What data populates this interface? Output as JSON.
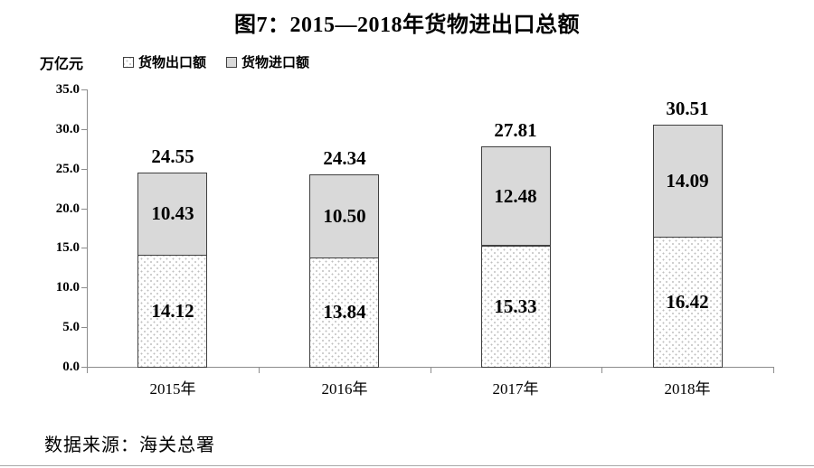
{
  "figure": {
    "title": "图7：2015—2018年货物进出口总额",
    "y_unit": "万亿元",
    "source": "数据来源：海关总署"
  },
  "chart_data": {
    "type": "bar",
    "stacked": true,
    "title": "图7：2015—2018年货物进出口总额",
    "ylabel": "万亿元",
    "xlabel": "",
    "ylim": [
      0,
      35
    ],
    "ytick_step": 5,
    "ytick_labels": [
      "0.0",
      "5.0",
      "10.0",
      "15.0",
      "20.0",
      "25.0",
      "30.0",
      "35.0"
    ],
    "grid": false,
    "legend_position": "top-left",
    "categories": [
      "2015年",
      "2016年",
      "2017年",
      "2018年"
    ],
    "series": [
      {
        "name": "货物出口额",
        "values": [
          14.12,
          13.84,
          15.33,
          16.42
        ],
        "fill": "white-dotted"
      },
      {
        "name": "货物进口额",
        "values": [
          10.43,
          10.5,
          12.48,
          14.09
        ],
        "fill": "#d9d9d9"
      }
    ],
    "totals": [
      24.55,
      24.34,
      27.81,
      30.51
    ],
    "source": "数据来源：海关总署"
  },
  "colors": {
    "bar_border": "#404040",
    "import_fill": "#d9d9d9",
    "export_fill": "#ffffff",
    "dot": "#bfbfbf",
    "axis": "#8c8c8c",
    "text": "#000000"
  }
}
